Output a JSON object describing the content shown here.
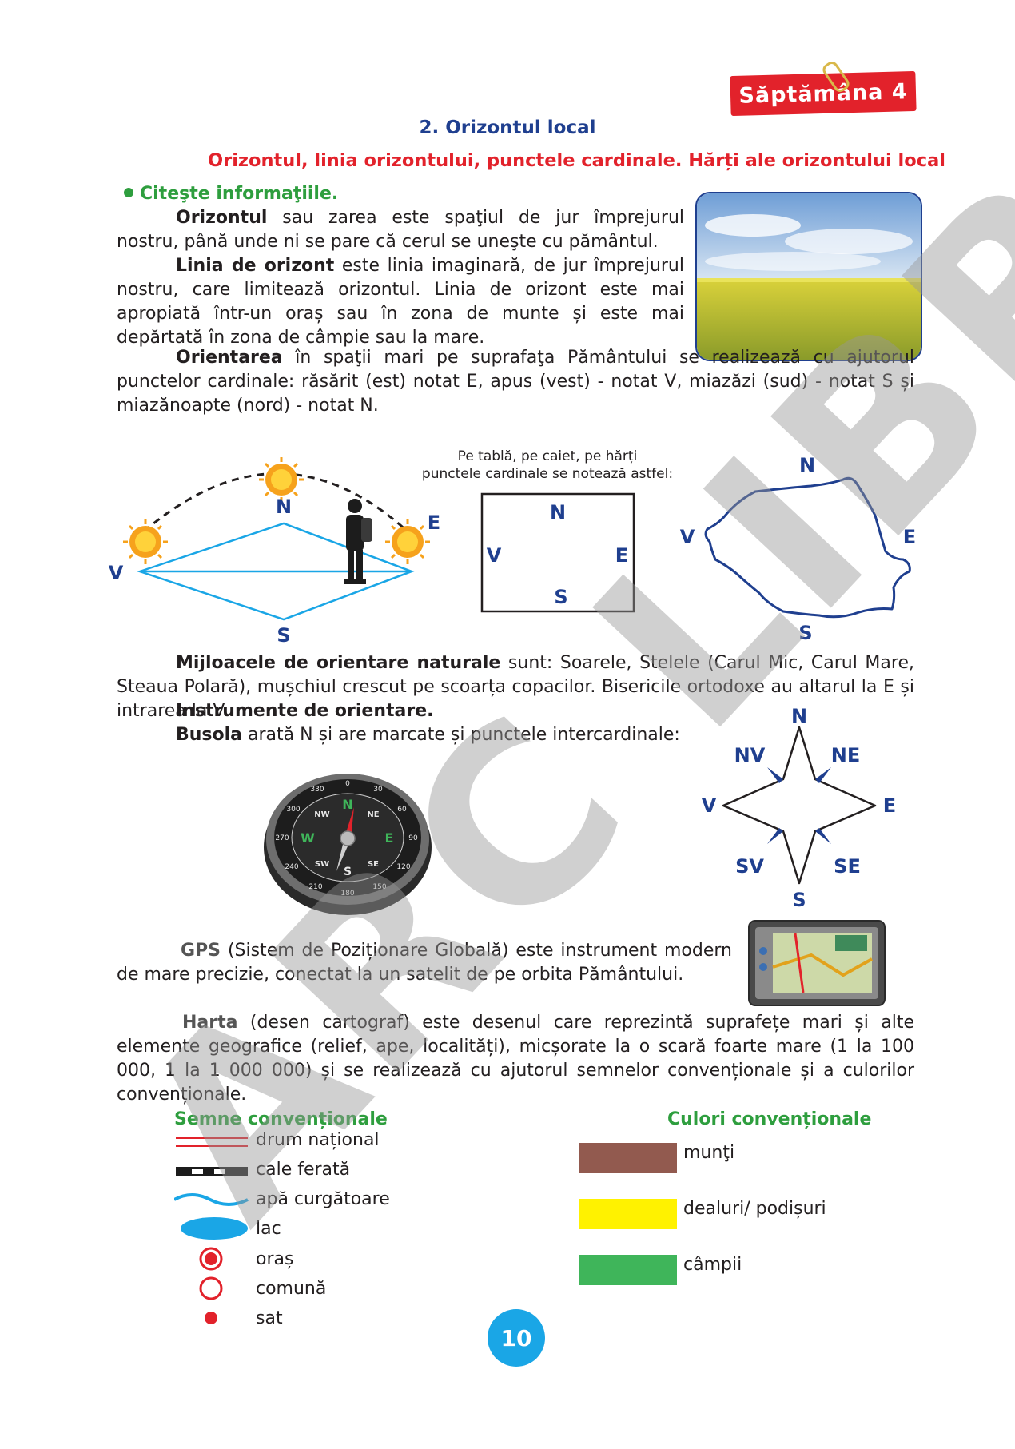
{
  "header": {
    "week": "Săptămâna 4"
  },
  "chapter": "2. Orizontul local",
  "subtitle": "Orizontul, linia orizontului, punctele cardinale. Hărți ale orizontului local",
  "instruction": "Citeşte informaţiile.",
  "p1": {
    "term": "Orizontul",
    "text": " sau zarea este spaţiul de jur împrejurul nostru, până unde ni se pare că cerul se uneşte cu pământul."
  },
  "p2": {
    "term": "Linia de orizont",
    "text": " este linia imaginară, de jur împrejurul nostru, care limitează orizontul. Linia de orizont este mai apropiată într-un oraș sau în zona de munte și este mai depărtată în zona de câmpie sau la mare."
  },
  "p3": {
    "term": "Orientarea",
    "text": " în spaţii mari pe suprafaţa Pământului se realizează cu ajutorul punctelor cardinale: răsărit (est) notat E, apus (vest) - notat V, miazăzi (sud) - notat S și miazănoapte (nord) - notat N."
  },
  "diagram": {
    "caption_line1": "Pe tablă, pe caiet, pe hărți",
    "caption_line2": "punctele cardinale se notează astfel:",
    "n": "N",
    "s": "S",
    "e": "E",
    "v": "V"
  },
  "p4": {
    "term": "Mijloacele de orientare naturale",
    "text": " sunt: Soarele, Stelele (Carul Mic, Carul Mare, Steaua Polară), mușchiul crescut pe scoarța copacilor. Bisericile ortodoxe au altarul la E și intrarea la V."
  },
  "p5": {
    "term": "Instrumente de orientare."
  },
  "p6": {
    "term": "Busola",
    "text": " arată N și are marcate și punctele intercardinale:"
  },
  "rose": {
    "n": "N",
    "s": "S",
    "e": "E",
    "v": "V",
    "nv": "NV",
    "ne": "NE",
    "sv": "SV",
    "se": "SE"
  },
  "compass_face": {
    "nw": "NW",
    "n": "N",
    "ne": "NE",
    "w": "W",
    "e": "E",
    "sw": "SW",
    "s": "S",
    "se": "SE",
    "d0": "0",
    "d30": "30",
    "d60": "60",
    "d90": "90",
    "d120": "120",
    "d150": "150",
    "d180": "180",
    "d210": "210",
    "d240": "240",
    "d270": "270",
    "d300": "300",
    "d330": "330"
  },
  "p7": {
    "term": "GPS",
    "text": " (Sistem de Poziționare Globală) este instrument modern de mare precizie,  conectat la un satelit de pe orbita Pământului."
  },
  "p8": {
    "term": "Harta",
    "text": " (desen cartograf) este desenul care reprezintă suprafețe mari și alte elemente geografice (relief, ape, localități), micșorate la o scară foarte mare (1 la 100 000, 1 la 1 000 000) și se realizează cu ajutorul semnelor convenționale și a culorilor convenționale."
  },
  "legend_signs": {
    "title": "Semne convenționale",
    "items": [
      "drum național",
      "cale ferată",
      "apă curgătoare",
      "lac",
      "oraș",
      "comună",
      "sat"
    ]
  },
  "legend_colors": {
    "title": "Culori convenționale",
    "items": [
      {
        "label": "munţi",
        "color": "#925a4f"
      },
      {
        "label": "dealuri/ podișuri",
        "color": "#fff200"
      },
      {
        "label": "câmpii",
        "color": "#3fb55a"
      }
    ]
  },
  "page_number": "10",
  "watermark": "ARC LIBRI"
}
